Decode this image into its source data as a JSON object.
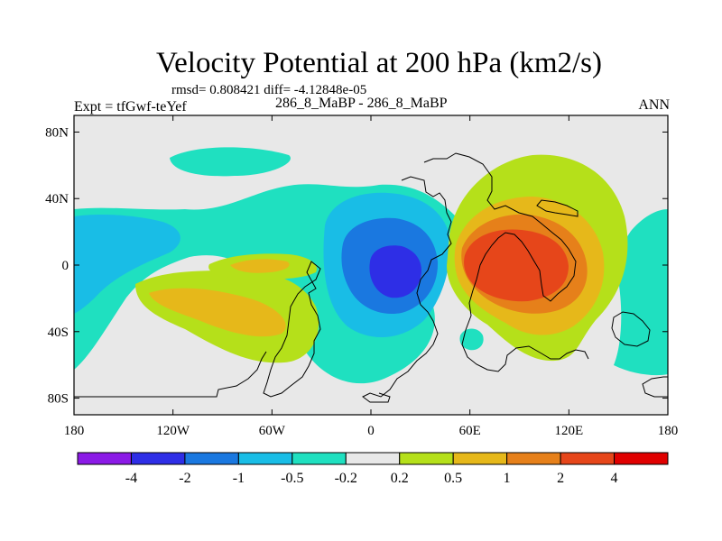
{
  "chart_data": {
    "type": "heatmap",
    "title": "Velocity Potential at 200 hPa (km2/s)",
    "stats_line": "rmsd= 0.808421 diff= -4.12848e-05",
    "left_label": "Expt = tfGwf-teYef",
    "center_label": "286_8_MaBP - 286_8_MaBP",
    "right_label": "ANN",
    "xlim": [
      -180,
      180
    ],
    "ylim": [
      -90,
      90
    ],
    "x_ticks": [
      -180,
      -120,
      -60,
      0,
      60,
      120,
      180
    ],
    "x_tick_labels": [
      "180",
      "120W",
      "60W",
      "0",
      "60E",
      "120E",
      "180"
    ],
    "y_ticks": [
      80,
      40,
      0,
      -40,
      -80
    ],
    "y_tick_labels": [
      "80N",
      "40N",
      "0",
      "40S",
      "80S"
    ],
    "colorbar_labels": [
      "-4",
      "-2",
      "-1",
      "-0.5",
      "-0.2",
      "0.2",
      "0.5",
      "1",
      "2",
      "4"
    ],
    "colorbar_colors": [
      "#8b1ae6",
      "#2e2ee6",
      "#1a78e0",
      "#19bde6",
      "#1fe0c0",
      "#e8e8e8",
      "#b5e01a",
      "#e6b81a",
      "#e6801a",
      "#e6461a",
      "#e00000"
    ],
    "background_color": "#e8e8e8",
    "features": [
      {
        "name": "min-south-america",
        "lon": 12,
        "lat": 0,
        "peak": -3.0
      },
      {
        "name": "max-indian-ocean",
        "lon": 95,
        "lat": 3,
        "peak": 3.2
      },
      {
        "name": "min-central-pacific",
        "lon": -155,
        "lat": 0,
        "peak": -1.0
      },
      {
        "name": "max-south-pacific",
        "lon": -80,
        "lat": -30,
        "peak": 0.9
      }
    ]
  }
}
